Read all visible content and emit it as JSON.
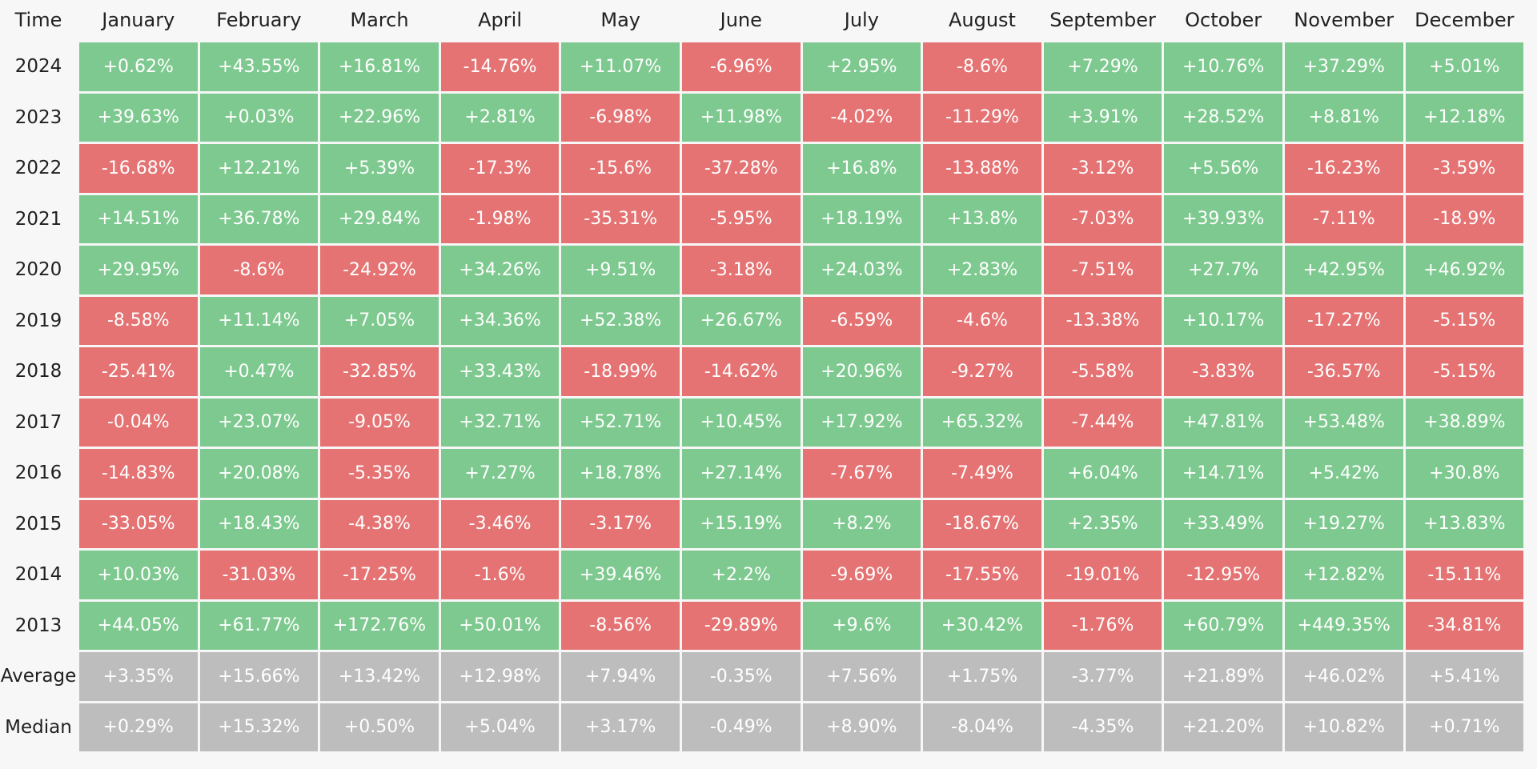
{
  "colors": {
    "positive": "#7ec98f",
    "negative": "#e57373",
    "summary": "#bdbdbd",
    "background": "#f7f7f7"
  },
  "chart_data": {
    "type": "heatmap",
    "corner_label": "Time",
    "columns": [
      "January",
      "February",
      "March",
      "April",
      "May",
      "June",
      "July",
      "August",
      "September",
      "October",
      "November",
      "December"
    ],
    "rows": [
      {
        "label": "2024",
        "kind": "year",
        "values": [
          "+0.62%",
          "+43.55%",
          "+16.81%",
          "-14.76%",
          "+11.07%",
          "-6.96%",
          "+2.95%",
          "-8.6%",
          "+7.29%",
          "+10.76%",
          "+37.29%",
          "+5.01%"
        ]
      },
      {
        "label": "2023",
        "kind": "year",
        "values": [
          "+39.63%",
          "+0.03%",
          "+22.96%",
          "+2.81%",
          "-6.98%",
          "+11.98%",
          "-4.02%",
          "-11.29%",
          "+3.91%",
          "+28.52%",
          "+8.81%",
          "+12.18%"
        ]
      },
      {
        "label": "2022",
        "kind": "year",
        "values": [
          "-16.68%",
          "+12.21%",
          "+5.39%",
          "-17.3%",
          "-15.6%",
          "-37.28%",
          "+16.8%",
          "-13.88%",
          "-3.12%",
          "+5.56%",
          "-16.23%",
          "-3.59%"
        ]
      },
      {
        "label": "2021",
        "kind": "year",
        "values": [
          "+14.51%",
          "+36.78%",
          "+29.84%",
          "-1.98%",
          "-35.31%",
          "-5.95%",
          "+18.19%",
          "+13.8%",
          "-7.03%",
          "+39.93%",
          "-7.11%",
          "-18.9%"
        ]
      },
      {
        "label": "2020",
        "kind": "year",
        "values": [
          "+29.95%",
          "-8.6%",
          "-24.92%",
          "+34.26%",
          "+9.51%",
          "-3.18%",
          "+24.03%",
          "+2.83%",
          "-7.51%",
          "+27.7%",
          "+42.95%",
          "+46.92%"
        ]
      },
      {
        "label": "2019",
        "kind": "year",
        "values": [
          "-8.58%",
          "+11.14%",
          "+7.05%",
          "+34.36%",
          "+52.38%",
          "+26.67%",
          "-6.59%",
          "-4.6%",
          "-13.38%",
          "+10.17%",
          "-17.27%",
          "-5.15%"
        ]
      },
      {
        "label": "2018",
        "kind": "year",
        "values": [
          "-25.41%",
          "+0.47%",
          "-32.85%",
          "+33.43%",
          "-18.99%",
          "-14.62%",
          "+20.96%",
          "-9.27%",
          "-5.58%",
          "-3.83%",
          "-36.57%",
          "-5.15%"
        ]
      },
      {
        "label": "2017",
        "kind": "year",
        "values": [
          "-0.04%",
          "+23.07%",
          "-9.05%",
          "+32.71%",
          "+52.71%",
          "+10.45%",
          "+17.92%",
          "+65.32%",
          "-7.44%",
          "+47.81%",
          "+53.48%",
          "+38.89%"
        ]
      },
      {
        "label": "2016",
        "kind": "year",
        "values": [
          "-14.83%",
          "+20.08%",
          "-5.35%",
          "+7.27%",
          "+18.78%",
          "+27.14%",
          "-7.67%",
          "-7.49%",
          "+6.04%",
          "+14.71%",
          "+5.42%",
          "+30.8%"
        ]
      },
      {
        "label": "2015",
        "kind": "year",
        "values": [
          "-33.05%",
          "+18.43%",
          "-4.38%",
          "-3.46%",
          "-3.17%",
          "+15.19%",
          "+8.2%",
          "-18.67%",
          "+2.35%",
          "+33.49%",
          "+19.27%",
          "+13.83%"
        ]
      },
      {
        "label": "2014",
        "kind": "year",
        "values": [
          "+10.03%",
          "-31.03%",
          "-17.25%",
          "-1.6%",
          "+39.46%",
          "+2.2%",
          "-9.69%",
          "-17.55%",
          "-19.01%",
          "-12.95%",
          "+12.82%",
          "-15.11%"
        ]
      },
      {
        "label": "2013",
        "kind": "year",
        "values": [
          "+44.05%",
          "+61.77%",
          "+172.76%",
          "+50.01%",
          "-8.56%",
          "-29.89%",
          "+9.6%",
          "+30.42%",
          "-1.76%",
          "+60.79%",
          "+449.35%",
          "-34.81%"
        ]
      },
      {
        "label": "Average",
        "kind": "summary",
        "values": [
          "+3.35%",
          "+15.66%",
          "+13.42%",
          "+12.98%",
          "+7.94%",
          "-0.35%",
          "+7.56%",
          "+1.75%",
          "-3.77%",
          "+21.89%",
          "+46.02%",
          "+5.41%"
        ]
      },
      {
        "label": "Median",
        "kind": "summary",
        "values": [
          "+0.29%",
          "+15.32%",
          "+0.50%",
          "+5.04%",
          "+3.17%",
          "-0.49%",
          "+8.90%",
          "-8.04%",
          "-4.35%",
          "+21.20%",
          "+10.82%",
          "+0.71%"
        ]
      }
    ]
  }
}
